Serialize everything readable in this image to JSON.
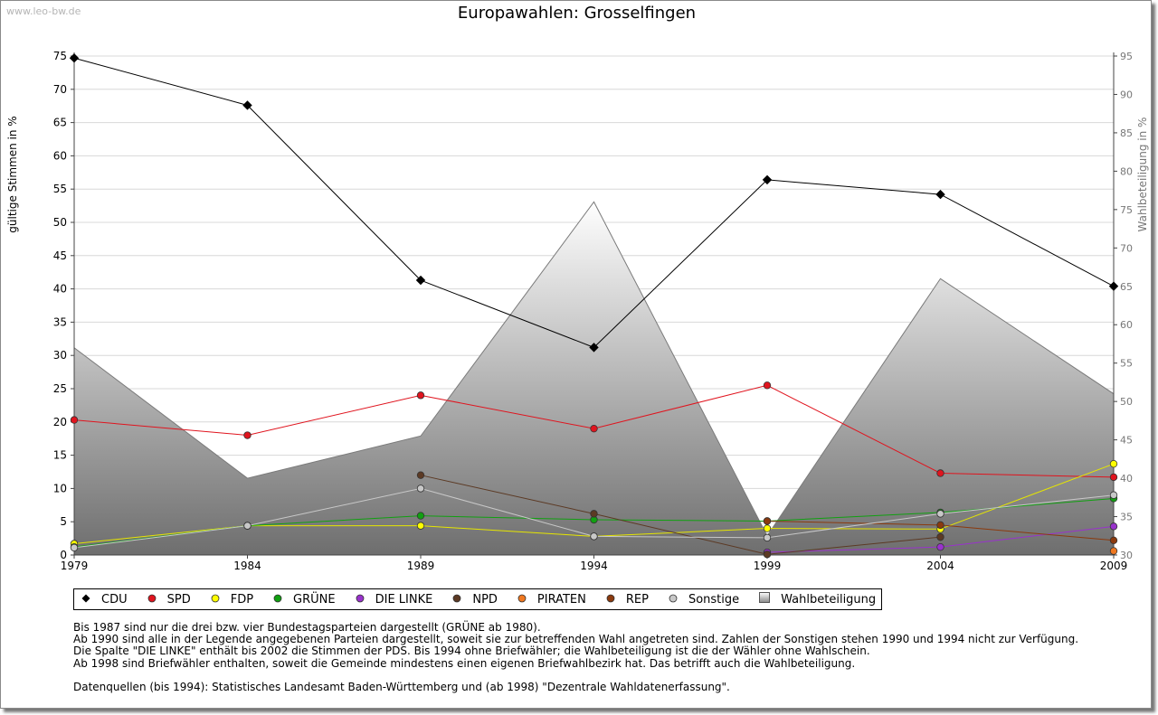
{
  "watermark": "www.leo-bw.de",
  "title": "Europawahlen: Grosselfingen",
  "chart_data": {
    "type": "line",
    "title": "Europawahlen: Grosselfingen",
    "xlabel": "",
    "ylabel": "gültige Stimmen in %",
    "y2label": "Wahlbeteiligung in %",
    "ylim": [
      0,
      75
    ],
    "y2lim": [
      30,
      95
    ],
    "y_ticks": [
      0,
      5,
      10,
      15,
      20,
      25,
      30,
      35,
      40,
      45,
      50,
      55,
      60,
      65,
      70,
      75
    ],
    "y2_ticks": [
      30,
      35,
      40,
      45,
      50,
      55,
      60,
      65,
      70,
      75,
      80,
      85,
      90,
      95
    ],
    "categories": [
      "1979",
      "1984",
      "1989",
      "1994",
      "1999",
      "2004",
      "2009"
    ],
    "grid": true,
    "legend_position": "bottom",
    "series": [
      {
        "name": "CDU",
        "color": "#000000",
        "line": "#000000",
        "values": [
          74.7,
          67.6,
          41.3,
          31.2,
          56.4,
          54.2,
          40.4
        ]
      },
      {
        "name": "SPD",
        "color": "#e0141e",
        "line": "#e0141e",
        "values": [
          20.3,
          18.0,
          24.0,
          19.0,
          25.5,
          12.3,
          11.7
        ]
      },
      {
        "name": "FDP",
        "color": "#ffff00",
        "line": "#e6e600",
        "values": [
          1.7,
          4.4,
          4.4,
          2.8,
          4.0,
          3.9,
          13.7
        ]
      },
      {
        "name": "GRÜNE",
        "color": "#11a011",
        "line": "#11a011",
        "values": [
          1.2,
          4.4,
          5.9,
          5.3,
          5.1,
          6.4,
          8.5
        ]
      },
      {
        "name": "DIE LINKE",
        "color": "#9932cc",
        "line": "#9932cc",
        "values": [
          null,
          null,
          null,
          null,
          0.4,
          1.2,
          4.3
        ]
      },
      {
        "name": "NPD",
        "color": "#5c3a24",
        "line": "#5c3a24",
        "values": [
          null,
          null,
          12.0,
          6.2,
          0.1,
          2.7,
          null
        ]
      },
      {
        "name": "PIRATEN",
        "color": "#f07820",
        "line": "#f07820",
        "values": [
          null,
          null,
          null,
          null,
          null,
          null,
          0.6
        ]
      },
      {
        "name": "REP",
        "color": "#8b3a0e",
        "line": "#8b3a0e",
        "values": [
          null,
          null,
          null,
          null,
          5.1,
          4.5,
          2.2
        ]
      },
      {
        "name": "Sonstige",
        "color": "#c8c8c8",
        "line": "#c8c8c8",
        "values": [
          1.1,
          4.4,
          10.0,
          2.8,
          2.6,
          6.2,
          9.0
        ]
      }
    ],
    "turnout": {
      "name": "Wahlbeteiligung",
      "axis": "right",
      "values": [
        57.0,
        40.0,
        45.5,
        76.0,
        32.5,
        66.0,
        51.0
      ]
    }
  },
  "notes": [
    "Bis 1987 sind nur die drei bzw. vier Bundestagsparteien dargestellt (GRÜNE ab 1980).",
    "Ab 1990 sind alle in der Legende angegebenen Parteien dargestellt, soweit sie zur betreffenden Wahl angetreten sind. Zahlen der Sonstigen stehen 1990 und 1994 nicht zur Verfügung.",
    "Die Spalte \"DIE LINKE\" enthält bis 2002 die Stimmen der PDS. Bis 1994 ohne Briefwähler; die Wahlbeteiligung ist die der Wähler ohne Wahlschein.",
    "Ab 1998 sind Briefwähler enthalten, soweit die Gemeinde mindestens einen eigenen Briefwahlbezirk hat. Das betrifft auch die Wahlbeteiligung."
  ],
  "sources": "Datenquellen (bis 1994): Statistisches Landesamt Baden-Württemberg und (ab 1998) \"Dezentrale Wahldatenerfassung\"."
}
